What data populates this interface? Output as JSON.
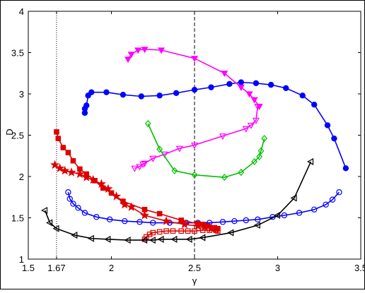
{
  "chart_data": {
    "type": "line",
    "title": "",
    "xlabel": "γ",
    "ylabel": "D",
    "xlim": [
      1.5,
      3.5
    ],
    "ylim": [
      1,
      4
    ],
    "x_ticks": [
      1.5,
      1.67,
      2,
      2.5,
      3,
      3.5
    ],
    "x_tick_labels": [
      "1.5",
      "1.67",
      "2",
      "2.5",
      "3",
      "3.5"
    ],
    "y_ticks": [
      1,
      1.5,
      2,
      2.5,
      3,
      3.5,
      4
    ],
    "y_tick_labels": [
      "1",
      "1.5",
      "2",
      "2.5",
      "3",
      "3.5",
      "4"
    ],
    "grid": false,
    "legend": "none",
    "reference_lines": [
      {
        "x": 1.67,
        "style": "dotted",
        "color": "#000000"
      },
      {
        "x": 2.5,
        "style": "dashed",
        "color": "#000000"
      }
    ],
    "series": [
      {
        "color": "#0000ff",
        "marker": "filled-circle",
        "points": [
          [
            1.84,
            2.77
          ],
          [
            1.84,
            2.82
          ],
          [
            1.85,
            2.86
          ],
          [
            1.86,
            2.98
          ],
          [
            1.88,
            3.02
          ],
          [
            1.97,
            3.02
          ],
          [
            2.07,
            2.99
          ],
          [
            2.18,
            2.97
          ],
          [
            2.29,
            2.98
          ],
          [
            2.39,
            3.01
          ],
          [
            2.5,
            3.05
          ],
          [
            2.6,
            3.08
          ],
          [
            2.71,
            3.12
          ],
          [
            2.78,
            3.14
          ],
          [
            2.87,
            3.13
          ],
          [
            2.96,
            3.11
          ],
          [
            3.05,
            3.07
          ],
          [
            3.15,
            2.98
          ],
          [
            3.22,
            2.87
          ],
          [
            3.3,
            2.62
          ],
          [
            3.34,
            2.46
          ],
          [
            3.41,
            2.1
          ]
        ]
      },
      {
        "color": "#0000ff",
        "marker": "open-circle",
        "points": [
          [
            1.74,
            1.81
          ],
          [
            1.75,
            1.73
          ],
          [
            1.77,
            1.67
          ],
          [
            1.8,
            1.62
          ],
          [
            1.84,
            1.56
          ],
          [
            1.91,
            1.51
          ],
          [
            1.99,
            1.48
          ],
          [
            2.08,
            1.46
          ],
          [
            2.17,
            1.45
          ],
          [
            2.25,
            1.44
          ],
          [
            2.35,
            1.44
          ],
          [
            2.45,
            1.44
          ],
          [
            2.52,
            1.44
          ],
          [
            2.59,
            1.44
          ],
          [
            2.67,
            1.45
          ],
          [
            2.74,
            1.46
          ],
          [
            2.81,
            1.47
          ],
          [
            2.88,
            1.48
          ],
          [
            2.97,
            1.51
          ],
          [
            3.04,
            1.53
          ],
          [
            3.13,
            1.56
          ],
          [
            3.22,
            1.6
          ],
          [
            3.29,
            1.66
          ],
          [
            3.33,
            1.72
          ],
          [
            3.37,
            1.81
          ]
        ]
      },
      {
        "color": "#ff00ff",
        "marker": "filled-triangle-down",
        "points": [
          [
            2.1,
            3.42
          ],
          [
            2.12,
            3.48
          ],
          [
            2.16,
            3.53
          ],
          [
            2.2,
            3.54
          ],
          [
            2.3,
            3.53
          ],
          [
            2.5,
            3.43
          ],
          [
            2.68,
            3.25
          ],
          [
            2.78,
            3.08
          ],
          [
            2.83,
            3.0
          ],
          [
            2.86,
            2.93
          ],
          [
            2.89,
            2.85
          ]
        ]
      },
      {
        "color": "#ff00ff",
        "marker": "open-triangle-down",
        "points": [
          [
            2.88,
            2.85
          ],
          [
            2.87,
            2.68
          ],
          [
            2.84,
            2.62
          ],
          [
            2.81,
            2.58
          ],
          [
            2.67,
            2.49
          ],
          [
            2.5,
            2.38
          ],
          [
            2.41,
            2.34
          ],
          [
            2.32,
            2.27
          ],
          [
            2.25,
            2.22
          ],
          [
            2.2,
            2.16
          ],
          [
            2.19,
            2.15
          ],
          [
            2.17,
            2.12
          ],
          [
            2.14,
            2.1
          ]
        ]
      },
      {
        "color": "#00c000",
        "marker": "open-diamond",
        "points": [
          [
            2.22,
            2.64
          ],
          [
            2.29,
            2.33
          ],
          [
            2.38,
            2.07
          ],
          [
            2.5,
            2.02
          ],
          [
            2.68,
            1.99
          ],
          [
            2.78,
            2.05
          ],
          [
            2.86,
            2.18
          ],
          [
            2.89,
            2.24
          ],
          [
            2.9,
            2.31
          ],
          [
            2.92,
            2.46
          ]
        ]
      },
      {
        "color": "#dd0000",
        "marker": "filled-square",
        "points": [
          [
            1.67,
            2.54
          ],
          [
            1.68,
            2.46
          ],
          [
            1.71,
            2.35
          ],
          [
            1.74,
            2.29
          ],
          [
            1.77,
            2.19
          ],
          [
            1.81,
            2.09
          ],
          [
            1.85,
            2.03
          ],
          [
            1.9,
            1.95
          ],
          [
            1.95,
            1.86
          ],
          [
            2.0,
            1.8
          ],
          [
            2.07,
            1.7
          ],
          [
            2.2,
            1.6
          ],
          [
            2.29,
            1.55
          ],
          [
            2.42,
            1.47
          ],
          [
            2.52,
            1.43
          ],
          [
            2.55,
            1.42
          ],
          [
            2.58,
            1.4
          ],
          [
            2.62,
            1.38
          ],
          [
            2.64,
            1.37
          ]
        ]
      },
      {
        "color": "#dd0000",
        "marker": "filled-star",
        "points": [
          [
            1.66,
            2.14
          ],
          [
            1.69,
            2.1
          ],
          [
            1.72,
            2.07
          ],
          [
            1.76,
            2.05
          ],
          [
            1.81,
            2.03
          ],
          [
            1.85,
            1.99
          ],
          [
            1.89,
            1.96
          ],
          [
            1.94,
            1.91
          ],
          [
            1.98,
            1.85
          ],
          [
            2.03,
            1.76
          ],
          [
            2.08,
            1.66
          ],
          [
            2.12,
            1.63
          ],
          [
            2.2,
            1.53
          ],
          [
            2.33,
            1.46
          ],
          [
            2.44,
            1.42
          ],
          [
            2.52,
            1.4
          ],
          [
            2.56,
            1.39
          ],
          [
            2.6,
            1.37
          ],
          [
            2.63,
            1.36
          ]
        ]
      },
      {
        "color": "#dd0000",
        "marker": "open-square",
        "points": [
          [
            2.2,
            1.24
          ],
          [
            2.21,
            1.27
          ],
          [
            2.23,
            1.3
          ],
          [
            2.25,
            1.32
          ],
          [
            2.29,
            1.33
          ],
          [
            2.33,
            1.34
          ],
          [
            2.37,
            1.34
          ],
          [
            2.42,
            1.34
          ],
          [
            2.46,
            1.34
          ],
          [
            2.5,
            1.34
          ],
          [
            2.55,
            1.35
          ],
          [
            2.59,
            1.35
          ],
          [
            2.63,
            1.35
          ],
          [
            2.64,
            1.34
          ]
        ]
      },
      {
        "color": "#000000",
        "marker": "open-triangle-left",
        "points": [
          [
            1.6,
            1.59
          ],
          [
            1.63,
            1.44
          ],
          [
            1.67,
            1.37
          ],
          [
            1.78,
            1.29
          ],
          [
            1.88,
            1.25
          ],
          [
            1.98,
            1.24
          ],
          [
            2.1,
            1.23
          ],
          [
            2.2,
            1.23
          ],
          [
            2.25,
            1.23
          ],
          [
            2.3,
            1.24
          ],
          [
            2.38,
            1.24
          ],
          [
            2.47,
            1.24
          ],
          [
            2.55,
            1.26
          ],
          [
            2.72,
            1.32
          ],
          [
            2.88,
            1.41
          ],
          [
            3.0,
            1.53
          ],
          [
            3.1,
            1.74
          ],
          [
            3.2,
            2.18
          ]
        ]
      }
    ]
  }
}
